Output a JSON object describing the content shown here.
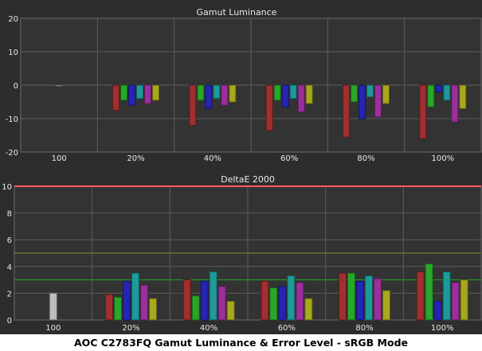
{
  "caption": "AOC C2783FQ Gamut Luminance & Error Level - sRGB Mode",
  "colors": {
    "background": "#2d2d2d",
    "plot_bg": "#333333",
    "reference_red": "#ff5a5a",
    "reference_green": "#1faa1f",
    "reference_olive": "#8c8c1e",
    "white_bar": "#f4f4f4",
    "red_bar": "#cd3c3c",
    "green_bar": "#33d633",
    "blue_bar": "#2f2fe6",
    "cyan_bar": "#27c6c6",
    "magenta_bar": "#c83cc8",
    "yellow_bar": "#d8d827"
  },
  "chart_data": [
    {
      "type": "bar",
      "title": "Gamut Luminance",
      "categories": [
        "100",
        "20%",
        "40%",
        "60%",
        "80%",
        "100%"
      ],
      "y_ticks": [
        "20",
        "10",
        "0",
        "-10",
        "-20"
      ],
      "ylim": [
        -20,
        20
      ],
      "grid": true,
      "series": [
        {
          "color": "white",
          "values": [
            0,
            null,
            null,
            null,
            null,
            null
          ]
        },
        {
          "color": "red",
          "values": [
            null,
            -7.5,
            -12,
            -13.5,
            -15.5,
            -16
          ]
        },
        {
          "color": "green",
          "values": [
            null,
            -4.5,
            -4.5,
            -4.5,
            -5,
            -6.5
          ]
        },
        {
          "color": "blue",
          "values": [
            null,
            -6,
            -7,
            -6.5,
            -10,
            -2
          ]
        },
        {
          "color": "cyan",
          "values": [
            null,
            -4,
            -4,
            -4,
            -3.5,
            -4.5
          ]
        },
        {
          "color": "magenta",
          "values": [
            null,
            -5.5,
            -6,
            -8,
            -9.5,
            -11
          ]
        },
        {
          "color": "yellow",
          "values": [
            null,
            -4.5,
            -5,
            -5.5,
            -5.5,
            -7
          ]
        }
      ]
    },
    {
      "type": "bar",
      "title": "DeltaE 2000",
      "categories": [
        "100",
        "20%",
        "40%",
        "60%",
        "80%",
        "100%"
      ],
      "y_ticks": [
        "10",
        "8",
        "6",
        "4",
        "2",
        "0"
      ],
      "ylim": [
        0,
        10
      ],
      "grid": true,
      "reference_lines": [
        {
          "value": 10,
          "color": "red"
        },
        {
          "value": 5,
          "color": "olive"
        },
        {
          "value": 3,
          "color": "green"
        }
      ],
      "series": [
        {
          "color": "white",
          "values": [
            2.0,
            null,
            null,
            null,
            null,
            null
          ]
        },
        {
          "color": "red",
          "values": [
            null,
            1.9,
            3.0,
            2.9,
            3.5,
            3.6
          ]
        },
        {
          "color": "green",
          "values": [
            null,
            1.7,
            1.8,
            2.4,
            3.5,
            4.2
          ]
        },
        {
          "color": "blue",
          "values": [
            null,
            2.9,
            2.9,
            2.5,
            2.9,
            1.4
          ]
        },
        {
          "color": "cyan",
          "values": [
            null,
            3.5,
            3.6,
            3.3,
            3.3,
            3.6
          ]
        },
        {
          "color": "magenta",
          "values": [
            null,
            2.6,
            2.5,
            2.8,
            3.1,
            2.8
          ]
        },
        {
          "color": "yellow",
          "values": [
            null,
            1.6,
            1.4,
            1.6,
            2.2,
            3.0
          ]
        }
      ]
    }
  ]
}
